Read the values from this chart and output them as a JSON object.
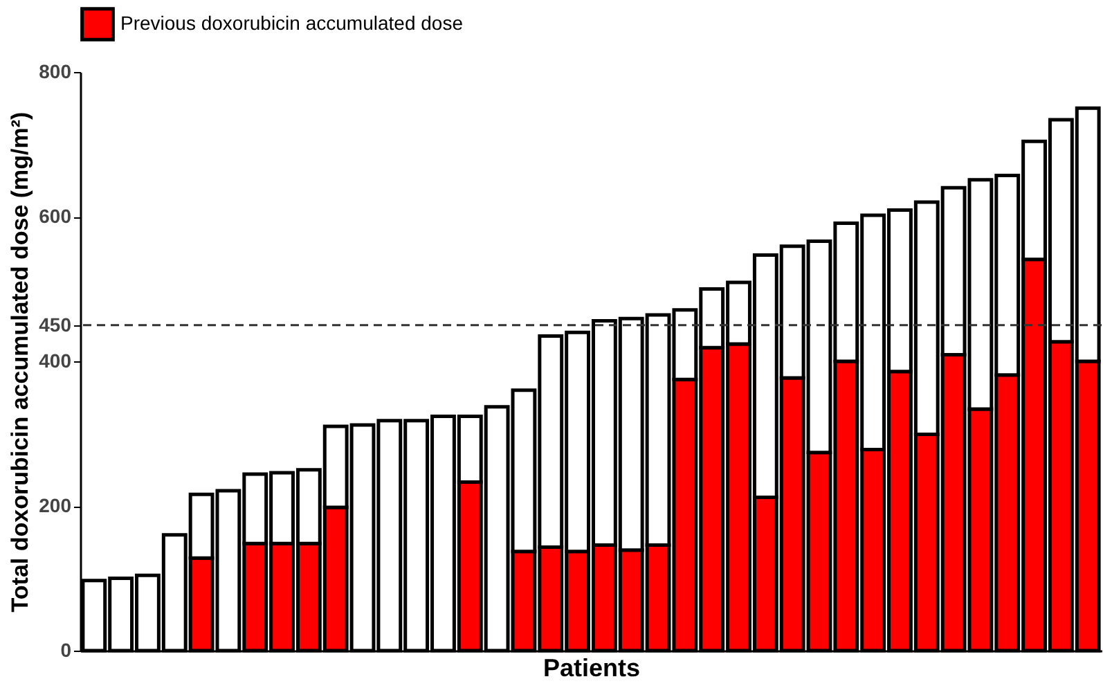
{
  "chart_data": {
    "type": "bar",
    "stacked": true,
    "xlabel": "Patients",
    "ylabel": "Total doxorubicin accumulated dose (mg/m²)",
    "categories": [
      null,
      null,
      null,
      null,
      null,
      null,
      null,
      null,
      null,
      null,
      null,
      null,
      null,
      null,
      null,
      null,
      null,
      null,
      null,
      null,
      null,
      null,
      null,
      null,
      null,
      null,
      null,
      null,
      null,
      null,
      null,
      null,
      null,
      null,
      null,
      null,
      null,
      null
    ],
    "series": [
      {
        "name": "Previous doxorubicin accumulated dose",
        "color": "#ff0000",
        "values": [
          null,
          null,
          null,
          null,
          128,
          null,
          148,
          148,
          148,
          198,
          null,
          null,
          null,
          null,
          233,
          null,
          137,
          143,
          137,
          146,
          139,
          146,
          375,
          419,
          424,
          212,
          377,
          274,
          400,
          278,
          386,
          299,
          409,
          334,
          381,
          541,
          427,
          400
        ]
      },
      {
        "color": "#ffffff",
        "values": [
          97,
          100,
          104,
          160,
          88,
          221,
          96,
          98,
          102,
          112,
          312,
          318,
          318,
          324,
          91,
          337,
          223,
          292,
          303,
          310,
          320,
          318,
          96,
          81,
          85,
          335,
          182,
          292,
          191,
          324,
          223,
          321,
          231,
          317,
          276,
          163,
          307,
          350
        ]
      }
    ],
    "ylim": [
      0,
      800
    ],
    "yticks": [
      0,
      200,
      400,
      450,
      600,
      800
    ],
    "ref_lines": [
      {
        "axis": "y",
        "value": 450,
        "line_style": "dashed",
        "color": "#333333"
      }
    ],
    "grid": false,
    "legend": "top",
    "tick_labels": "y"
  }
}
